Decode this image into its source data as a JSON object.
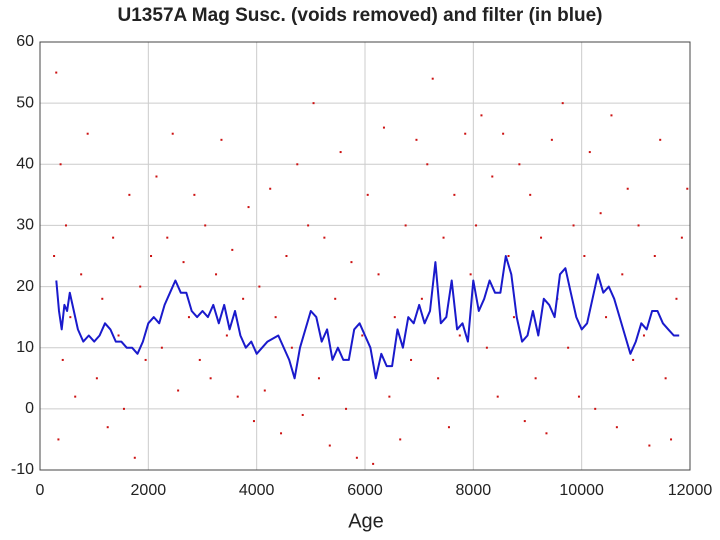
{
  "chart_data": {
    "type": "scatter",
    "title": "U1357A Mag Susc. (voids removed) and filter (in blue)",
    "x_label": "Age",
    "xlim": [
      0,
      12000
    ],
    "xticks": [
      0,
      2000,
      4000,
      6000,
      8000,
      10000,
      12000
    ],
    "ylim": [
      -10,
      60
    ],
    "yticks": [
      -10,
      0,
      10,
      20,
      30,
      40,
      50,
      60
    ],
    "grid": true,
    "series": [
      {
        "color": "#cc1111",
        "type": "scatter",
        "x": [
          260,
          300,
          340,
          380,
          420,
          480,
          560,
          650,
          760,
          880,
          1050,
          1150,
          1250,
          1350,
          1450,
          1550,
          1650,
          1750,
          1850,
          1950,
          2050,
          2150,
          2250,
          2350,
          2450,
          2550,
          2650,
          2750,
          2850,
          2950,
          3050,
          3150,
          3250,
          3350,
          3450,
          3550,
          3650,
          3750,
          3850,
          3950,
          4050,
          4150,
          4250,
          4350,
          4450,
          4550,
          4650,
          4750,
          4850,
          4950,
          5050,
          5150,
          5250,
          5350,
          5450,
          5550,
          5650,
          5750,
          5850,
          5950,
          6050,
          6150,
          6250,
          6350,
          6450,
          6550,
          6650,
          6750,
          6850,
          6950,
          7050,
          7150,
          7250,
          7350,
          7450,
          7550,
          7650,
          7750,
          7850,
          7950,
          8050,
          8150,
          8250,
          8350,
          8450,
          8550,
          8650,
          8750,
          8850,
          8950,
          9050,
          9150,
          9250,
          9350,
          9450,
          9550,
          9650,
          9750,
          9850,
          9950,
          10050,
          10150,
          10250,
          10350,
          10450,
          10550,
          10650,
          10750,
          10850,
          10950,
          11050,
          11150,
          11250,
          11350,
          11450,
          11550,
          11650,
          11750,
          11850,
          11950
        ],
        "values": [
          25,
          55,
          -5,
          40,
          8,
          30,
          15,
          2,
          22,
          45,
          5,
          18,
          -3,
          28,
          12,
          0,
          35,
          -8,
          20,
          8,
          25,
          38,
          10,
          28,
          45,
          3,
          24,
          15,
          35,
          8,
          30,
          5,
          22,
          44,
          12,
          26,
          2,
          18,
          33,
          -2,
          20,
          3,
          36,
          15,
          -4,
          25,
          10,
          40,
          -1,
          30,
          50,
          5,
          28,
          -6,
          18,
          42,
          0,
          24,
          -8,
          12,
          35,
          -9,
          22,
          46,
          2,
          15,
          -5,
          30,
          8,
          44,
          18,
          40,
          54,
          5,
          28,
          -3,
          35,
          12,
          45,
          22,
          30,
          48,
          10,
          38,
          2,
          45,
          25,
          15,
          40,
          -2,
          35,
          5,
          28,
          -4,
          44,
          18,
          50,
          10,
          30,
          2,
          25,
          42,
          0,
          32,
          15,
          48,
          -3,
          22,
          36,
          8,
          30,
          12,
          -6,
          25,
          44,
          5,
          -5,
          18,
          28,
          36
        ]
      },
      {
        "color": "#1a1acc",
        "type": "line",
        "x": [
          300,
          350,
          400,
          450,
          500,
          550,
          600,
          700,
          800,
          900,
          1000,
          1100,
          1200,
          1300,
          1400,
          1500,
          1600,
          1700,
          1800,
          1900,
          2000,
          2100,
          2200,
          2300,
          2400,
          2500,
          2600,
          2700,
          2800,
          2900,
          3000,
          3100,
          3200,
          3300,
          3400,
          3500,
          3600,
          3700,
          3800,
          3900,
          4000,
          4100,
          4200,
          4400,
          4600,
          4700,
          4800,
          5000,
          5100,
          5200,
          5300,
          5400,
          5500,
          5600,
          5700,
          5800,
          5900,
          6000,
          6100,
          6200,
          6300,
          6400,
          6500,
          6600,
          6700,
          6800,
          6900,
          7000,
          7100,
          7200,
          7300,
          7400,
          7500,
          7600,
          7700,
          7800,
          7900,
          8000,
          8100,
          8200,
          8300,
          8400,
          8500,
          8600,
          8700,
          8800,
          8900,
          9000,
          9100,
          9200,
          9300,
          9400,
          9500,
          9600,
          9700,
          9800,
          9900,
          10000,
          10100,
          10200,
          10300,
          10400,
          10500,
          10600,
          10700,
          10800,
          10900,
          11000,
          11100,
          11200,
          11300,
          11400,
          11500,
          11600,
          11700,
          11800
        ],
        "values": [
          21,
          16,
          13,
          17,
          16,
          19,
          17,
          13,
          11,
          12,
          11,
          12,
          14,
          13,
          11,
          11,
          10,
          10,
          9,
          11,
          14,
          15,
          14,
          17,
          19,
          21,
          19,
          19,
          16,
          15,
          16,
          15,
          17,
          14,
          17,
          13,
          16,
          12,
          10,
          11,
          9,
          10,
          11,
          12,
          8,
          5,
          10,
          16,
          15,
          11,
          13,
          8,
          10,
          8,
          8,
          13,
          14,
          12,
          10,
          5,
          9,
          7,
          7,
          13,
          10,
          15,
          14,
          17,
          14,
          16,
          24,
          14,
          15,
          21,
          13,
          14,
          11,
          21,
          16,
          18,
          21,
          19,
          19,
          25,
          22,
          15,
          11,
          12,
          16,
          12,
          18,
          17,
          15,
          22,
          23,
          19,
          15,
          13,
          14,
          18,
          22,
          19,
          20,
          18,
          15,
          12,
          9,
          11,
          14,
          13,
          16,
          16,
          14,
          13,
          12,
          12
        ]
      }
    ]
  }
}
